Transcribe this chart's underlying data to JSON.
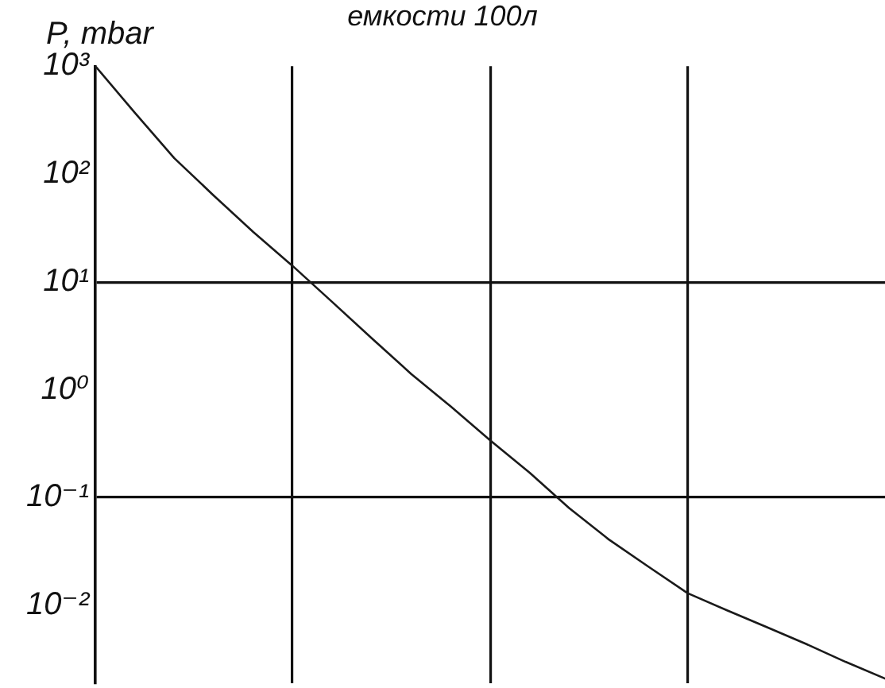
{
  "chart_data": {
    "type": "line",
    "title": "емкости 100л",
    "ylabel": "P, mbar",
    "categories": [
      null,
      null,
      null,
      null,
      null,
      null,
      null,
      null,
      null,
      null,
      null,
      null,
      null,
      null,
      null,
      null,
      null,
      null,
      null,
      null,
      null
    ],
    "series": [
      {
        "color": "#1a1a1a",
        "values": [
          1000,
          370,
          140,
          63,
          29,
          14,
          6.5,
          3.0,
          1.4,
          0.7,
          0.34,
          0.17,
          0.08,
          0.041,
          0.023,
          0.013,
          0.009,
          0.0063,
          0.0044,
          0.003,
          0.0021
        ]
      }
    ],
    "log": true,
    "ylim": [
      0.0019,
      1000
    ],
    "yticks": [
      {
        "value": 0.01,
        "label": "10⁻²"
      },
      {
        "value": 0.1,
        "label": "10⁻¹"
      },
      {
        "value": 1,
        "label": "10⁰"
      },
      {
        "value": 10,
        "label": "10¹"
      },
      {
        "value": 100,
        "label": "10²"
      },
      {
        "value": 1000,
        "label": "10³"
      }
    ],
    "grid": true,
    "tick_labels": "y",
    "marker": "none",
    "line_style": "solid"
  }
}
